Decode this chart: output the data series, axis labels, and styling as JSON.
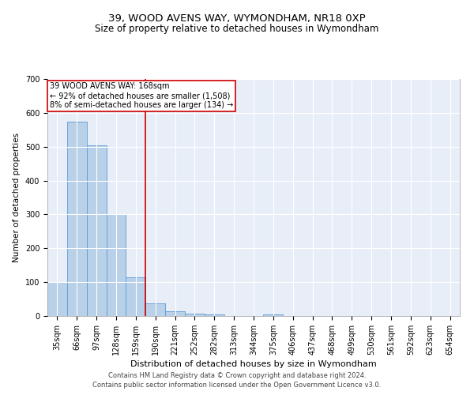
{
  "title": "39, WOOD AVENS WAY, WYMONDHAM, NR18 0XP",
  "subtitle": "Size of property relative to detached houses in Wymondham",
  "xlabel": "Distribution of detached houses by size in Wymondham",
  "ylabel": "Number of detached properties",
  "footer_line1": "Contains HM Land Registry data © Crown copyright and database right 2024.",
  "footer_line2": "Contains public sector information licensed under the Open Government Licence v3.0.",
  "categories": [
    "35sqm",
    "66sqm",
    "97sqm",
    "128sqm",
    "159sqm",
    "190sqm",
    "221sqm",
    "252sqm",
    "282sqm",
    "313sqm",
    "344sqm",
    "375sqm",
    "406sqm",
    "437sqm",
    "468sqm",
    "499sqm",
    "530sqm",
    "561sqm",
    "592sqm",
    "623sqm",
    "654sqm"
  ],
  "values": [
    100,
    575,
    505,
    300,
    115,
    37,
    15,
    8,
    5,
    0,
    0,
    5,
    0,
    0,
    0,
    0,
    0,
    0,
    0,
    0,
    0
  ],
  "bar_color": "#b8d0e8",
  "bar_edge_color": "#5b9bd5",
  "ylim": [
    0,
    700
  ],
  "yticks": [
    0,
    100,
    200,
    300,
    400,
    500,
    600,
    700
  ],
  "vline_x": 4.5,
  "annotation_text_line1": "39 WOOD AVENS WAY: 168sqm",
  "annotation_text_line2": "← 92% of detached houses are smaller (1,508)",
  "annotation_text_line3": "8% of semi-detached houses are larger (134) →",
  "vline_color": "#cc0000",
  "annotation_box_edge": "#cc0000",
  "plot_bg_color": "#e8eef8",
  "fig_bg_color": "#ffffff",
  "grid_color": "#ffffff",
  "title_fontsize": 9.5,
  "subtitle_fontsize": 8.5,
  "tick_fontsize": 7,
  "ylabel_fontsize": 7.5,
  "xlabel_fontsize": 8,
  "annotation_fontsize": 7,
  "footer_fontsize": 6
}
